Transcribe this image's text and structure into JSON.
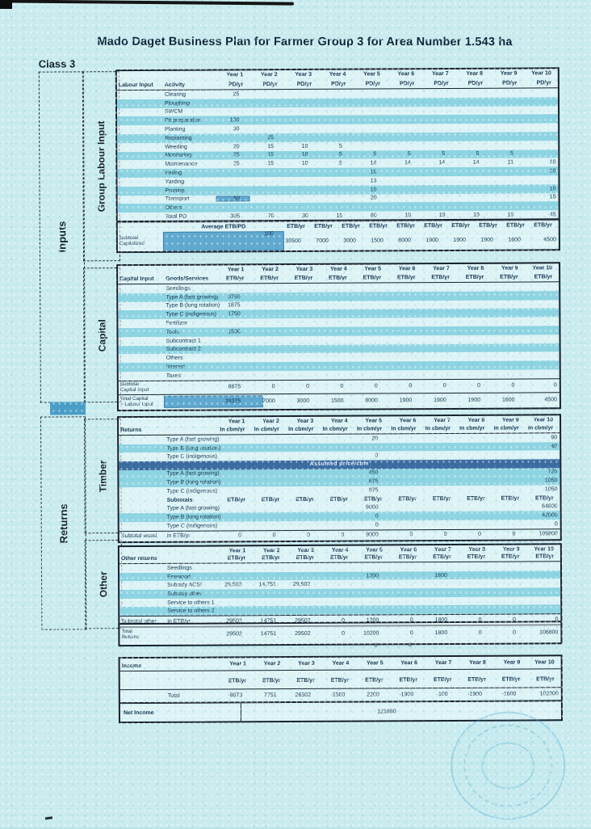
{
  "title": "Mado Daget Business Plan for Farmer Group 3 for Area Number 1.543 ha",
  "class_label": "Class 3",
  "side_labels": {
    "inputs": "Inputs",
    "group_labour": "Group Labour Input",
    "capital": "Capital",
    "returns": "Returns",
    "timber": "Timber",
    "other": "Other"
  },
  "years": [
    "Year 1",
    "Year 2",
    "Year 3",
    "Year 4",
    "Year 5",
    "Year 6",
    "Year 7",
    "Year 8",
    "Year 9",
    "Year 10"
  ],
  "labour": {
    "col1": "Labour Input",
    "col2": "Activity",
    "unit": "PD/yr",
    "rows": [
      {
        "activity": "Clearing",
        "values": [
          "25",
          "",
          "",
          "",
          "",
          "",
          "",
          "",
          "",
          ""
        ]
      },
      {
        "activity": "Ploughing",
        "values": [
          "",
          "",
          "",
          "",
          "",
          "",
          "",
          "",
          "",
          ""
        ]
      },
      {
        "activity": "SWCM",
        "values": [
          "",
          "",
          "",
          "",
          "",
          "",
          "",
          "",
          "",
          ""
        ]
      },
      {
        "activity": "Pit preparation",
        "values": [
          "130",
          "",
          "",
          "",
          "",
          "",
          "",
          "",
          "",
          ""
        ]
      },
      {
        "activity": "Planting",
        "values": [
          "30",
          "",
          "",
          "",
          "",
          "",
          "",
          "",
          "",
          ""
        ]
      },
      {
        "activity": "Replanting",
        "values": [
          "",
          "25",
          "",
          "",
          "",
          "",
          "",
          "",
          "",
          ""
        ]
      },
      {
        "activity": "Weeding",
        "values": [
          "20",
          "15",
          "10",
          "5",
          "",
          "",
          "",
          "",
          "",
          ""
        ]
      },
      {
        "activity": "Monitoring",
        "values": [
          "25",
          "15",
          "10",
          "5",
          "5",
          "5",
          "5",
          "5",
          "5",
          ""
        ]
      },
      {
        "activity": "Maintenance",
        "values": [
          "25",
          "15",
          "10",
          "5",
          "14",
          "14",
          "14",
          "14",
          "11",
          "10"
        ]
      },
      {
        "activity": "Felling",
        "values": [
          "",
          "",
          "",
          "",
          "18",
          "",
          "",
          "",
          "",
          "10"
        ]
      },
      {
        "activity": "Yarding",
        "values": [
          "",
          "",
          "",
          "",
          "13",
          "",
          "",
          "",
          "",
          ""
        ]
      },
      {
        "activity": "Pruning",
        "values": [
          "",
          "",
          "",
          "",
          "10",
          "",
          "",
          "",
          "",
          "10"
        ]
      },
      {
        "activity": "Transport",
        "values": [
          "50",
          "",
          "",
          "",
          "20",
          "",
          "",
          "",
          "",
          "15"
        ]
      },
      {
        "activity": "Others",
        "values": [
          "",
          "",
          "",
          "",
          "",
          "",
          "",
          "",
          "",
          ""
        ]
      },
      {
        "activity": "Total PD",
        "values": [
          "305",
          "70",
          "30",
          "15",
          "80",
          "19",
          "19",
          "19",
          "16",
          "45"
        ]
      }
    ]
  },
  "subtotal_capitalized": {
    "label_line1": "Subtotal",
    "label_line2": "Capitalized",
    "avg_label": "Average ETB/PD",
    "avg_value": "100",
    "unit": "ETB/yr",
    "values": [
      "30500",
      "7000",
      "3000",
      "1500",
      "8000",
      "1900",
      "1900",
      "1900",
      "1600",
      "4500"
    ]
  },
  "capital": {
    "col1": "Capital Input",
    "col2": "Goods/Services",
    "unit": "ETB/yr",
    "rows": [
      {
        "item": "Seedlings",
        "values": [
          "",
          "",
          "",
          "",
          "",
          "",
          "",
          "",
          "",
          ""
        ]
      },
      {
        "item": "Type A (fast growing)",
        "values": [
          "3750",
          "",
          "",
          "",
          "",
          "",
          "",
          "",
          "",
          ""
        ]
      },
      {
        "item": "Type B (long rotation)",
        "values": [
          "1875",
          "",
          "",
          "",
          "",
          "",
          "",
          "",
          "",
          ""
        ]
      },
      {
        "item": "Type C (indigenous)",
        "values": [
          "1750",
          "",
          "",
          "",
          "",
          "",
          "",
          "",
          "",
          ""
        ]
      },
      {
        "item": "Fertilizer",
        "values": [
          "",
          "",
          "",
          "",
          "",
          "",
          "",
          "",
          "",
          ""
        ]
      },
      {
        "item": "Tools",
        "values": [
          "1500",
          "",
          "",
          "",
          "",
          "",
          "",
          "",
          "",
          ""
        ]
      },
      {
        "item": "Subcontract 1",
        "values": [
          "",
          "",
          "",
          "",
          "",
          "",
          "",
          "",
          "",
          ""
        ]
      },
      {
        "item": "Subcontract 2",
        "values": [
          "",
          "",
          "",
          "",
          "",
          "",
          "",
          "",
          "",
          ""
        ]
      },
      {
        "item": "Others",
        "values": [
          "",
          "",
          "",
          "",
          "",
          "",
          "",
          "",
          "",
          ""
        ]
      },
      {
        "item": "Interest",
        "values": [
          "",
          "",
          "",
          "",
          "",
          "",
          "",
          "",
          "",
          ""
        ]
      },
      {
        "item": "Taxes",
        "values": [
          "",
          "",
          "",
          "",
          "",
          "",
          "",
          "",
          "",
          ""
        ]
      }
    ],
    "subtotal": {
      "label_line1": "Subtotal",
      "label_line2": "Capital Input",
      "values": [
        "8875",
        "0",
        "0",
        "0",
        "0",
        "0",
        "0",
        "0",
        "0",
        "0"
      ]
    },
    "total": {
      "label_line1": "Total Capital",
      "label_line2": "+ Labour Input",
      "values": [
        "39375",
        "7000",
        "3000",
        "1500",
        "8000",
        "1900",
        "1900",
        "1900",
        "1600",
        "4500"
      ]
    }
  },
  "timber": {
    "header": "Returns",
    "unit": "In cbm/yr",
    "volume_rows": [
      {
        "item": "Type A (fast growing)",
        "values": [
          "",
          "",
          "",
          "",
          "20",
          "",
          "",
          "",
          "",
          "90"
        ]
      },
      {
        "item": "Type B (long rotation)",
        "values": [
          "",
          "",
          "",
          "",
          "",
          "",
          "",
          "",
          "",
          "40"
        ]
      },
      {
        "item": "Type C (indigenous)",
        "values": [
          "",
          "",
          "",
          "",
          "0",
          "",
          "",
          "",
          "",
          ""
        ]
      }
    ],
    "banner": "Assumed price/cbm",
    "price_rows": [
      {
        "item": "Type A (fast growing)",
        "values": [
          "",
          "",
          "",
          "",
          "450",
          "",
          "",
          "",
          "",
          "720"
        ]
      },
      {
        "item": "Type B (long rotation)",
        "values": [
          "",
          "",
          "",
          "",
          "875",
          "",
          "",
          "",
          "",
          "1050"
        ]
      },
      {
        "item": "Type C (indigenous)",
        "values": [
          "",
          "",
          "",
          "",
          "875",
          "",
          "",
          "",
          "",
          "1050"
        ]
      }
    ],
    "subtotals_label": "Subtotals",
    "subtotals_unit": "ETB/yr",
    "value_rows": [
      {
        "item": "Type A (fast growing)",
        "values": [
          "",
          "",
          "",
          "",
          "9000",
          "",
          "",
          "",
          "",
          "64800"
        ]
      },
      {
        "item": "Type B (long rotation)",
        "values": [
          "",
          "",
          "",
          "",
          "0",
          "",
          "",
          "",
          "",
          "42000"
        ]
      },
      {
        "item": "Type C (indigenous)",
        "values": [
          "",
          "",
          "",
          "",
          "0",
          "",
          "",
          "",
          "",
          "0"
        ]
      }
    ],
    "subtotal_wood": {
      "label_line1": "Subtotal wood",
      "label_line2": "in ETB/yr",
      "values": [
        "0",
        "0",
        "0",
        "0",
        "9000",
        "0",
        "0",
        "0",
        "0",
        "106800"
      ]
    }
  },
  "other": {
    "header": "Other returns",
    "unit": "ETB/yr",
    "rows": [
      {
        "item": "Seedlings",
        "values": [
          "",
          "",
          "",
          "",
          "",
          "",
          "",
          "",
          "",
          ""
        ]
      },
      {
        "item": "Firewood",
        "values": [
          "",
          "",
          "",
          "",
          "1200",
          "",
          "1800",
          "",
          "",
          ""
        ]
      },
      {
        "item": "Subsidy ACSI",
        "values": [
          "29,502",
          "14,751",
          "29,502",
          "",
          "",
          "",
          "",
          "",
          "",
          ""
        ]
      },
      {
        "item": "Subsidy other",
        "values": [
          "",
          "",
          "",
          "",
          "",
          "",
          "",
          "",
          "",
          ""
        ]
      },
      {
        "item": "Service to others 1",
        "values": [
          "",
          "",
          "",
          "",
          "",
          "",
          "",
          "",
          "",
          ""
        ]
      },
      {
        "item": "Service to others 2",
        "values": [
          "",
          "",
          "",
          "",
          "",
          "",
          "",
          "",
          "",
          ""
        ]
      }
    ],
    "subtotal": {
      "label_line1": "Subtotal other",
      "label_line2": "in ETB/yr",
      "values": [
        "29502",
        "14751",
        "29502",
        "0",
        "1200",
        "0",
        "1800",
        "0",
        "0",
        "0"
      ]
    }
  },
  "total_returns": {
    "label_line1": "Total",
    "label_line2": "Returns",
    "values": [
      "29502",
      "14751",
      "29502",
      "0",
      "10200",
      "0",
      "1800",
      "0",
      "0",
      "106800"
    ]
  },
  "stray_zeros": {
    "year5": "0",
    "year6": "0"
  },
  "income": {
    "header": "Income",
    "unit": "ETB/yr",
    "total_label": "Total",
    "total_values": [
      "-9873",
      "7751",
      "26502",
      "-1500",
      "2200",
      "-1900",
      "-100",
      "-1900",
      "-1600",
      "102300"
    ],
    "net_label": "Net Income",
    "net_value": "121880"
  }
}
